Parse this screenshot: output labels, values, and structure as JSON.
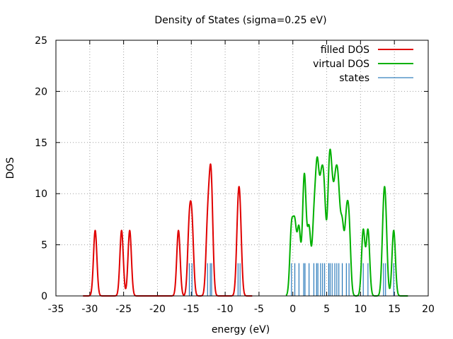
{
  "chart_data": {
    "type": "line",
    "title": "Density of States (sigma=0.25 eV)",
    "xlabel": "energy (eV)",
    "ylabel": "DOS",
    "xlim": [
      -35,
      20
    ],
    "ylim": [
      0,
      25
    ],
    "xticks": [
      -35,
      -30,
      -25,
      -20,
      -15,
      -10,
      -5,
      0,
      5,
      10,
      15,
      20
    ],
    "yticks": [
      0,
      5,
      10,
      15,
      20,
      25
    ],
    "grid": true,
    "legend_position": "top-right",
    "sigma": 0.25,
    "series": [
      {
        "name": "filled DOS",
        "color": "#e00000",
        "gaussian_centers": [
          -29.2,
          -25.3,
          -24.1,
          -16.9,
          -15.3,
          -14.9,
          -12.6,
          -12.2,
          -12.0,
          -8.1,
          -7.8
        ],
        "x_range": [
          -31,
          -6
        ]
      },
      {
        "name": "virtual DOS",
        "color": "#00b000",
        "gaussian_centers": [
          -0.2,
          0.3,
          0.9,
          1.6,
          1.8,
          2.4,
          3.1,
          3.5,
          3.7,
          4.1,
          4.4,
          4.7,
          5.3,
          5.5,
          5.8,
          6.2,
          6.5,
          6.8,
          7.3,
          7.9,
          8.3,
          10.4,
          11.1,
          13.4,
          13.7,
          14.9
        ],
        "x_range": [
          -1,
          17
        ]
      },
      {
        "name": "states",
        "color": "#0060ad",
        "stem_height": 3.2,
        "energies": [
          -15.3,
          -14.9,
          -12.6,
          -12.2,
          -12.0,
          -8.1,
          -7.8,
          -0.2,
          0.3,
          0.9,
          1.6,
          1.8,
          2.4,
          3.1,
          3.5,
          3.7,
          4.1,
          4.4,
          4.7,
          5.3,
          5.5,
          5.8,
          6.2,
          6.5,
          6.8,
          7.3,
          7.9,
          8.3,
          10.4,
          11.1,
          13.4,
          13.7,
          14.9
        ]
      }
    ]
  }
}
